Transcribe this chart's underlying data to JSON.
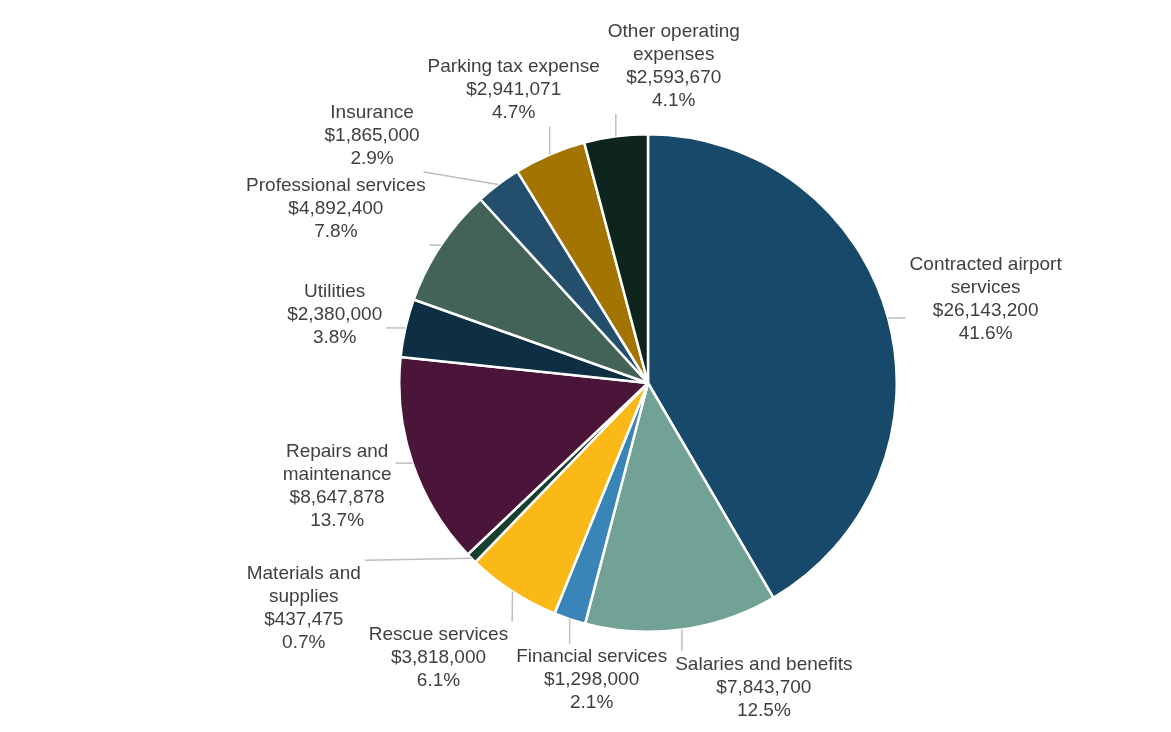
{
  "chart_data": {
    "type": "pie",
    "legend": false,
    "categories": [
      "Contracted airport services",
      "Salaries and benefits",
      "Financial services",
      "Rescue services",
      "Materials and supplies",
      "Repairs and maintenance",
      "Utilities",
      "Professional services",
      "Insurance",
      "Parking tax expense",
      "Other operating expenses"
    ],
    "values": [
      26143200,
      7843700,
      1298000,
      3818000,
      437475,
      8647878,
      2380000,
      4892400,
      1865000,
      2941071,
      2593670
    ],
    "value_labels": [
      "$26,143,200\n41.6%",
      "$7,843,700\n12.5%",
      "$1,298,000\n2.1%",
      "$3,818,000\n6.1%",
      "$437,475\n0.7%",
      "$8,647,878\n13.7%",
      "$2,380,000\n3.8%",
      "$4,892,400\n7.8%",
      "$1,865,000\n2.9%",
      "$2,941,071\n4.7%",
      "$2,593,670\n4.1%"
    ],
    "colors": [
      "#174a6a",
      "#72a195",
      "#3a85b8",
      "#fbb917",
      "#17402e",
      "#4a1538",
      "#0e2e43",
      "#436358",
      "#234f6d",
      "#a47400",
      "#0d251c"
    ]
  }
}
